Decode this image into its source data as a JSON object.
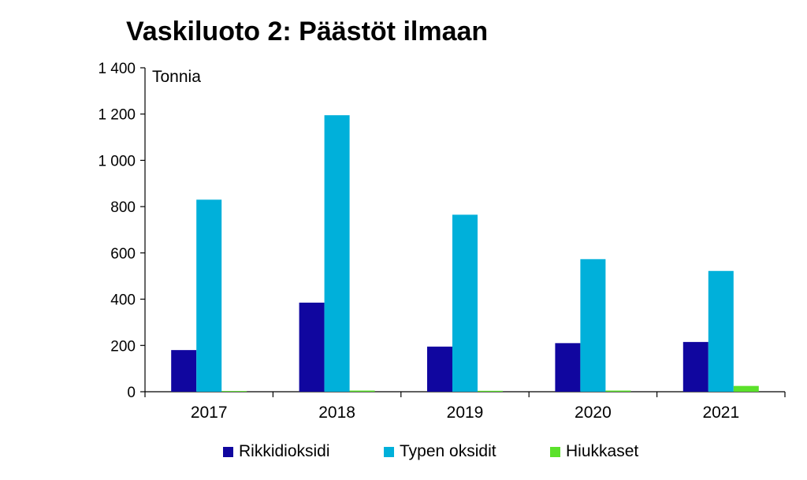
{
  "chart_data": {
    "type": "bar",
    "title": "Vaskiluoto 2: Päästöt ilmaan",
    "unit_label": "Tonnia",
    "categories": [
      "2017",
      "2018",
      "2019",
      "2020",
      "2021"
    ],
    "series": [
      {
        "name": "Rikkidioksidi",
        "color": "#10069f",
        "values": [
          180,
          385,
          195,
          210,
          215
        ]
      },
      {
        "name": "Typen oksidit",
        "color": "#00b0da",
        "values": [
          830,
          1195,
          765,
          573,
          522
        ]
      },
      {
        "name": "Hiukkaset",
        "color": "#5be12b",
        "values": [
          3,
          5,
          4,
          5,
          25
        ]
      }
    ],
    "ylim": [
      0,
      1400
    ],
    "yticks": [
      0,
      200,
      400,
      600,
      800,
      1000,
      1200,
      1400
    ],
    "ytick_labels": [
      "0",
      "200",
      "400",
      "600",
      "800",
      "1 000",
      "1 200",
      "1 400"
    ],
    "grid": false,
    "legend_position": "bottom"
  }
}
